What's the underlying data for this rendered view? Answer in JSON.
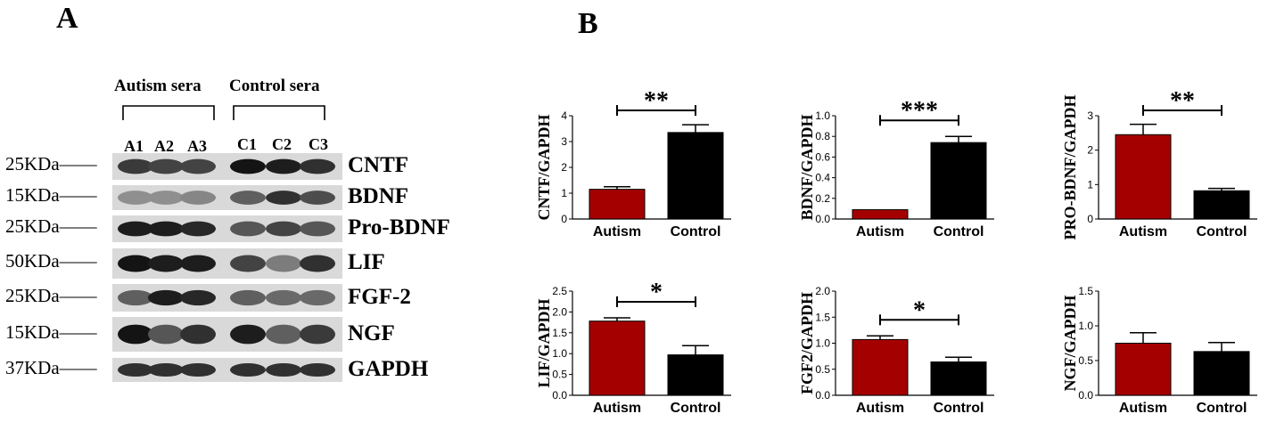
{
  "figure": {
    "panel_a": "A",
    "panel_b": "B"
  },
  "blot": {
    "groups": [
      "Autism sera",
      "Control sera"
    ],
    "lanes": [
      "A1",
      "A2",
      "A3",
      "C1",
      "C2",
      "C3"
    ],
    "rows": [
      {
        "kda": "25KDa",
        "protein": "CNTF"
      },
      {
        "kda": "15KDa",
        "protein": "BDNF"
      },
      {
        "kda": "25KDa",
        "protein": "Pro-BDNF"
      },
      {
        "kda": "50KDa",
        "protein": "LIF"
      },
      {
        "kda": "25KDa",
        "protein": "FGF-2"
      },
      {
        "kda": "15KDa",
        "protein": "NGF"
      },
      {
        "kda": "37KDa",
        "protein": "GAPDH"
      }
    ]
  },
  "colors": {
    "autism": "#A50000",
    "control": "#000000"
  },
  "chart_data": [
    {
      "type": "bar",
      "ylabel": "CNTF/GAPDH",
      "categories": [
        "Autism",
        "Control"
      ],
      "values": [
        1.15,
        3.35
      ],
      "errors": [
        0.1,
        0.3
      ],
      "ylim": [
        0,
        4
      ],
      "yticks": [
        "0",
        "1",
        "2",
        "3",
        "4"
      ],
      "significance": "**"
    },
    {
      "type": "bar",
      "ylabel": "BDNF/GAPDH",
      "categories": [
        "Autism",
        "Control"
      ],
      "values": [
        0.09,
        0.74
      ],
      "errors": [
        0.0,
        0.06
      ],
      "ylim": [
        0,
        1.0
      ],
      "yticks": [
        "0.0",
        "0.2",
        "0.4",
        "0.6",
        "0.8",
        "1.0"
      ],
      "significance": "***"
    },
    {
      "type": "bar",
      "ylabel": "PRO-BDNF/GAPDH",
      "categories": [
        "Autism",
        "Control"
      ],
      "values": [
        2.45,
        0.82
      ],
      "errors": [
        0.3,
        0.07
      ],
      "ylim": [
        0,
        3
      ],
      "yticks": [
        "0",
        "1",
        "2",
        "3"
      ],
      "significance": "**"
    },
    {
      "type": "bar",
      "ylabel": "LIF/GAPDH",
      "categories": [
        "Autism",
        "Control"
      ],
      "values": [
        1.78,
        0.97
      ],
      "errors": [
        0.08,
        0.22
      ],
      "ylim": [
        0,
        2.5
      ],
      "yticks": [
        "0.0",
        "0.5",
        "1.0",
        "1.5",
        "2.0",
        "2.5"
      ],
      "significance": "*"
    },
    {
      "type": "bar",
      "ylabel": "FGF2/GAPDH",
      "categories": [
        "Autism",
        "Control"
      ],
      "values": [
        1.07,
        0.64
      ],
      "errors": [
        0.07,
        0.09
      ],
      "ylim": [
        0,
        2.0
      ],
      "yticks": [
        "0.0",
        "0.5",
        "1.0",
        "1.5",
        "2.0"
      ],
      "significance": "*"
    },
    {
      "type": "bar",
      "ylabel": "NGF/GAPDH",
      "categories": [
        "Autism",
        "Control"
      ],
      "values": [
        0.75,
        0.63
      ],
      "errors": [
        0.15,
        0.13
      ],
      "ylim": [
        0,
        1.5
      ],
      "yticks": [
        "0.0",
        "0.5",
        "1.0",
        "1.5"
      ],
      "significance": ""
    }
  ]
}
